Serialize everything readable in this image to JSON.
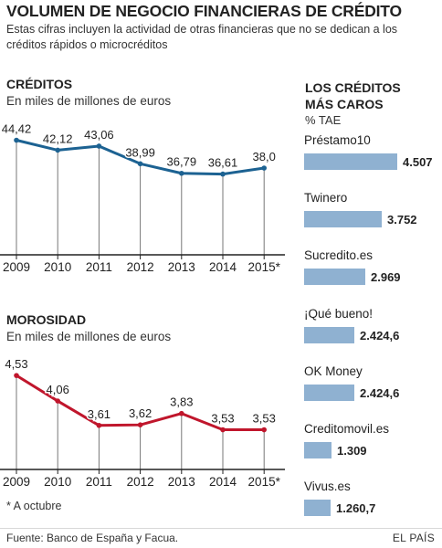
{
  "header": {
    "title": "VOLUMEN DE NEGOCIO FINANCIERAS DE CRÉDITO",
    "subtitle": "Estas cifras incluyen la actividad de otras financieras que no se dedican a los créditos rápidos o microcréditos"
  },
  "creditos": {
    "title": "CRÉDITOS",
    "subtitle": "En miles de millones de euros"
  },
  "morosidad": {
    "title": "MOROSIDAD",
    "subtitle": "En miles de millones de euros"
  },
  "ranking": {
    "title_line1": "LOS CRÉDITOS",
    "title_line2": "MÁS CAROS",
    "unit": "% TAE"
  },
  "footer": {
    "note": "* A octubre",
    "source": "Fuente: Banco de España y Facua.",
    "brand": "EL PAÍS"
  },
  "colors": {
    "creditos_line": "#1c6292",
    "morosidad_line": "#c0162c",
    "bar": "#8fb1d1",
    "axis": "#222222",
    "drop_line": "#777777"
  },
  "chart_data": [
    {
      "type": "line",
      "title": "CRÉDITOS",
      "subtitle": "En miles de millones de euros",
      "categories": [
        "2009",
        "2010",
        "2011",
        "2012",
        "2013",
        "2014",
        "2015*"
      ],
      "series": [
        {
          "values": [
            44.42,
            42.12,
            43.06,
            38.99,
            36.79,
            36.61,
            38.0
          ]
        }
      ],
      "data_labels": [
        "44,42",
        "42,12",
        "43,06",
        "38,99",
        "36,79",
        "36,61",
        "38,0"
      ],
      "ylim": [
        30,
        46
      ],
      "grid": false
    },
    {
      "type": "line",
      "title": "MOROSIDAD",
      "subtitle": "En miles de millones de euros",
      "categories": [
        "2009",
        "2010",
        "2011",
        "2012",
        "2013",
        "2014",
        "2015*"
      ],
      "series": [
        {
          "values": [
            4.53,
            4.06,
            3.61,
            3.62,
            3.83,
            3.53,
            3.53
          ]
        }
      ],
      "data_labels": [
        "4,53",
        "4,06",
        "3,61",
        "3,62",
        "3,83",
        "3,53",
        "3,53"
      ],
      "ylim": [
        3.0,
        4.6
      ],
      "grid": false
    },
    {
      "type": "bar",
      "title": "LOS CRÉDITOS MÁS CAROS",
      "ylabel": "% TAE",
      "categories": [
        "Préstamo10",
        "Twinero",
        "Sucredito.es",
        "¡Qué bueno!",
        "OK Money",
        "Creditomovil.es",
        "Vivus.es"
      ],
      "values": [
        4507,
        3752,
        2969,
        2424.6,
        2424.6,
        1309,
        1260.7
      ],
      "data_labels": [
        "4.507",
        "3.752",
        "2.969",
        "2.424,6",
        "2.424,6",
        "1.309",
        "1.260,7"
      ],
      "orientation": "horizontal"
    }
  ]
}
